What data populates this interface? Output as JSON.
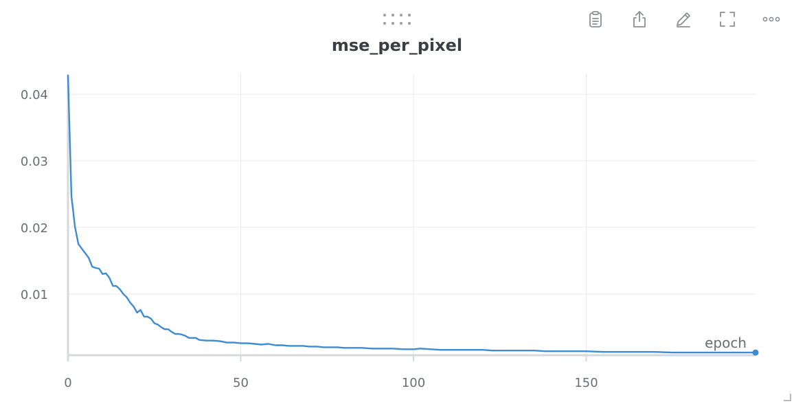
{
  "toolbar": {
    "buttons": [
      {
        "name": "copy-button",
        "icon": "clipboard-icon"
      },
      {
        "name": "export-button",
        "icon": "share-icon"
      },
      {
        "name": "edit-button",
        "icon": "pencil-icon"
      },
      {
        "name": "fullscreen-button",
        "icon": "expand-icon"
      },
      {
        "name": "more-button",
        "icon": "more-horizontal-icon"
      }
    ]
  },
  "colors": {
    "line": "#3d8bd4",
    "grid": "#e8e9ec",
    "axis": "#d7d8dc",
    "text": "#6a6d75",
    "title": "#3b3e45"
  },
  "chart_data": {
    "type": "line",
    "title": "mse_per_pixel",
    "xlabel": "epoch",
    "ylabel": "",
    "xlim": [
      0,
      199
    ],
    "ylim": [
      0.0008,
      0.043
    ],
    "x_ticks": [
      0,
      50,
      100,
      150
    ],
    "y_ticks": [
      0.01,
      0.02,
      0.03,
      0.04
    ],
    "y_tick_labels": [
      "0.01",
      "0.02",
      "0.03",
      "0.04"
    ],
    "grid": true,
    "legend": "none",
    "series": [
      {
        "points": [
          [
            0,
            0.0428
          ],
          [
            1,
            0.0247
          ],
          [
            2,
            0.0201
          ],
          [
            3,
            0.0175
          ],
          [
            4,
            0.0168
          ],
          [
            5,
            0.0161
          ],
          [
            6,
            0.0154
          ],
          [
            7,
            0.0141
          ],
          [
            8,
            0.0139
          ],
          [
            9,
            0.0138
          ],
          [
            10,
            0.013
          ],
          [
            11,
            0.0131
          ],
          [
            12,
            0.0124
          ],
          [
            13,
            0.0112
          ],
          [
            14,
            0.0112
          ],
          [
            15,
            0.0107
          ],
          [
            16,
            0.01
          ],
          [
            17,
            0.0095
          ],
          [
            18,
            0.0087
          ],
          [
            19,
            0.0081
          ],
          [
            20,
            0.0072
          ],
          [
            21,
            0.0076
          ],
          [
            22,
            0.0066
          ],
          [
            23,
            0.0066
          ],
          [
            24,
            0.0063
          ],
          [
            25,
            0.0056
          ],
          [
            26,
            0.0054
          ],
          [
            27,
            0.005
          ],
          [
            28,
            0.0047
          ],
          [
            29,
            0.0047
          ],
          [
            30,
            0.0043
          ],
          [
            31,
            0.004
          ],
          [
            32,
            0.004
          ],
          [
            33,
            0.0039
          ],
          [
            34,
            0.0037
          ],
          [
            35,
            0.0034
          ],
          [
            36,
            0.0034
          ],
          [
            37,
            0.0034
          ],
          [
            38,
            0.0031
          ],
          [
            40,
            0.003
          ],
          [
            42,
            0.003
          ],
          [
            44,
            0.0029
          ],
          [
            46,
            0.0027
          ],
          [
            48,
            0.0027
          ],
          [
            50,
            0.0026
          ],
          [
            52,
            0.0026
          ],
          [
            54,
            0.0025
          ],
          [
            56,
            0.0024
          ],
          [
            58,
            0.0025
          ],
          [
            60,
            0.0023
          ],
          [
            62,
            0.0023
          ],
          [
            64,
            0.0022
          ],
          [
            66,
            0.0022
          ],
          [
            68,
            0.0022
          ],
          [
            70,
            0.0021
          ],
          [
            72,
            0.0021
          ],
          [
            74,
            0.002
          ],
          [
            76,
            0.002
          ],
          [
            78,
            0.002
          ],
          [
            80,
            0.0019
          ],
          [
            82,
            0.0019
          ],
          [
            85,
            0.0019
          ],
          [
            88,
            0.0018
          ],
          [
            91,
            0.0018
          ],
          [
            94,
            0.0018
          ],
          [
            97,
            0.0017
          ],
          [
            100,
            0.0017
          ],
          [
            102,
            0.0018
          ],
          [
            105,
            0.0017
          ],
          [
            108,
            0.0016
          ],
          [
            111,
            0.0016
          ],
          [
            114,
            0.0016
          ],
          [
            117,
            0.0016
          ],
          [
            120,
            0.0016
          ],
          [
            123,
            0.0015
          ],
          [
            126,
            0.0015
          ],
          [
            129,
            0.0015
          ],
          [
            132,
            0.0015
          ],
          [
            135,
            0.0015
          ],
          [
            138,
            0.0014
          ],
          [
            141,
            0.0014
          ],
          [
            144,
            0.0014
          ],
          [
            147,
            0.0014
          ],
          [
            150,
            0.0014
          ],
          [
            155,
            0.0013
          ],
          [
            160,
            0.0013
          ],
          [
            165,
            0.0013
          ],
          [
            170,
            0.0013
          ],
          [
            175,
            0.0012
          ],
          [
            180,
            0.0012
          ],
          [
            185,
            0.0012
          ],
          [
            190,
            0.0012
          ],
          [
            195,
            0.0012
          ],
          [
            199,
            0.0012
          ]
        ]
      }
    ]
  }
}
